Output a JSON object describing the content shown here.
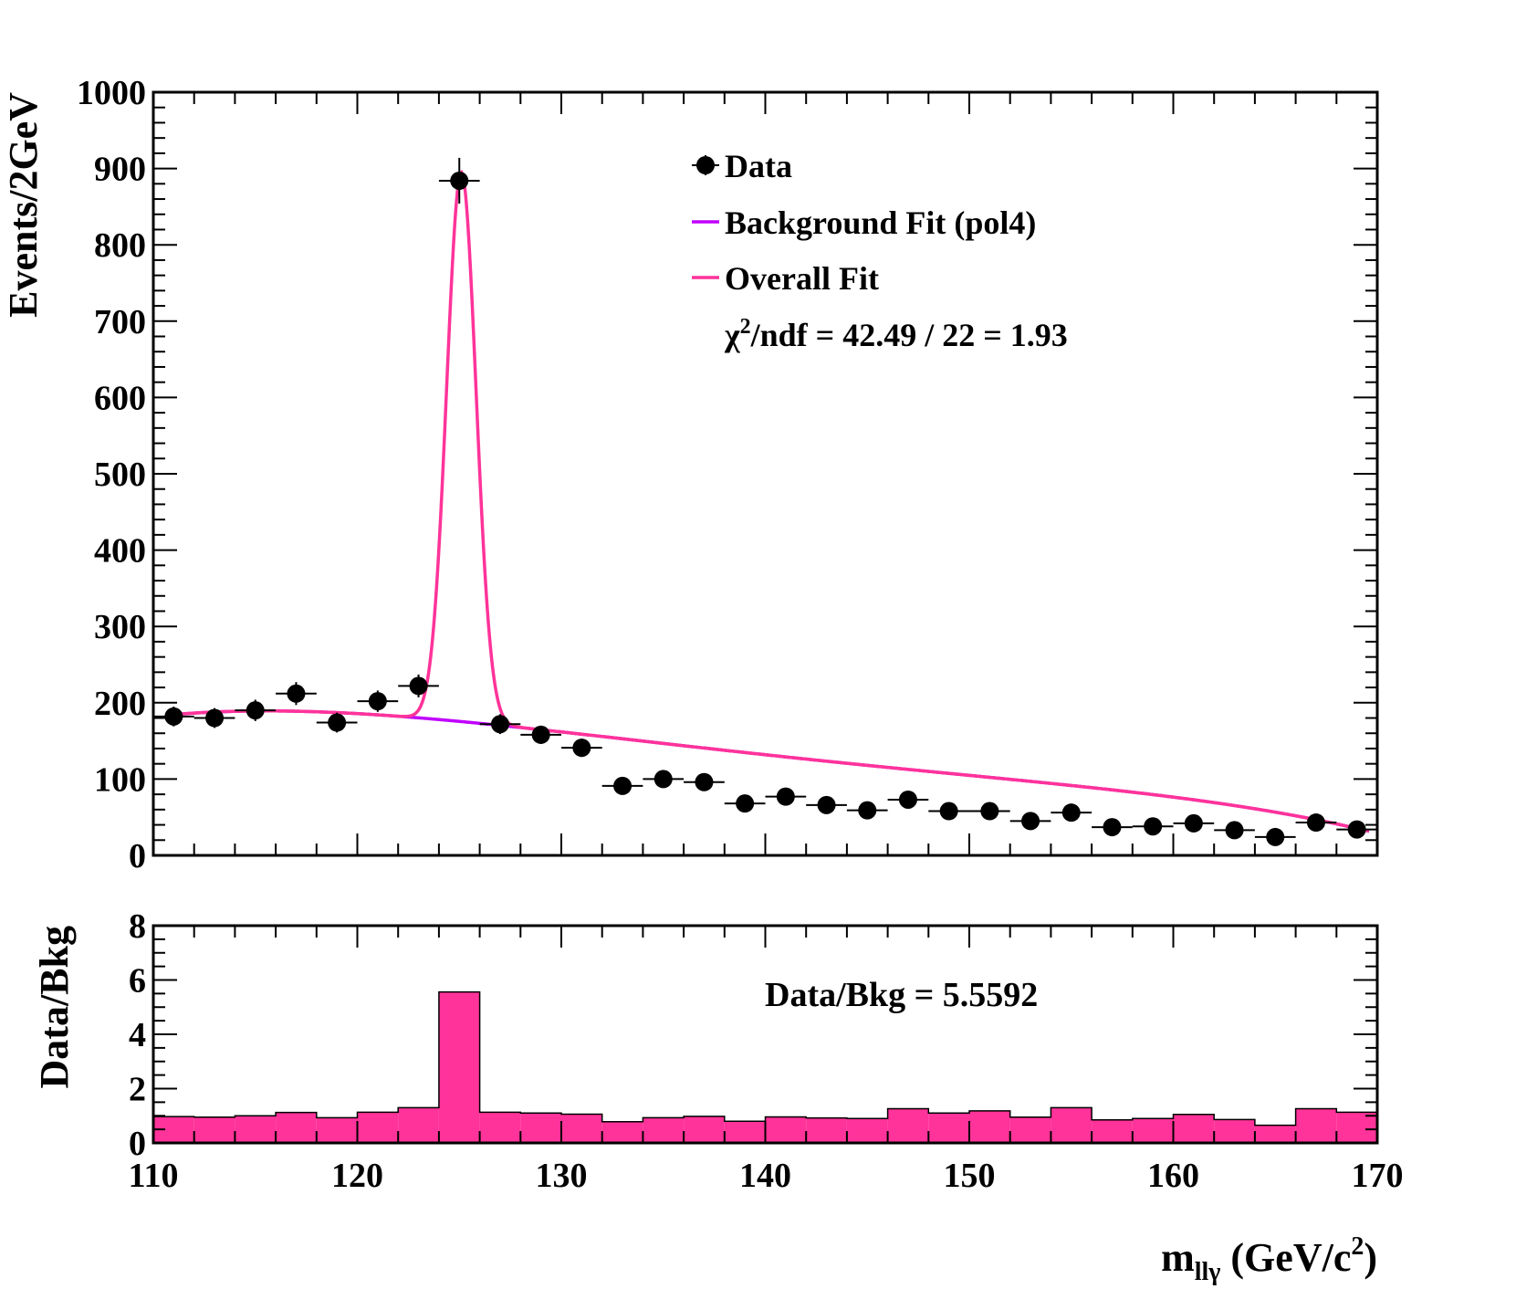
{
  "chart_data": [
    {
      "type": "scatter",
      "panel": "main",
      "ylabel": "Events/2GeV",
      "xlim": [
        110,
        170
      ],
      "ylim": [
        0,
        1000
      ],
      "y_ticks": [
        "0",
        "100",
        "200",
        "300",
        "400",
        "500",
        "600",
        "700",
        "800",
        "900",
        "1000"
      ],
      "legend": {
        "data": "Data",
        "background": "Background Fit (pol4)",
        "overall": "Overall Fit",
        "chi2_symbol": "χ",
        "chi2_sup": "2",
        "chi2_rest": "/ndf = 42.49 / 22 = 1.93"
      },
      "series": [
        {
          "name": "Data",
          "color": "#000000",
          "x": [
            111,
            113,
            115,
            117,
            119,
            121,
            123,
            125,
            127,
            129,
            131,
            133,
            135,
            137,
            139,
            141,
            143,
            145,
            147,
            149,
            151,
            153,
            155,
            157,
            159,
            161,
            163,
            165,
            167,
            169
          ],
          "y": [
            182,
            180,
            190,
            212,
            174,
            202,
            222,
            884,
            172,
            158,
            141,
            91,
            100,
            96,
            68,
            77,
            66,
            59,
            73,
            58,
            58,
            45,
            56,
            37,
            38,
            42,
            33,
            24,
            43,
            34
          ],
          "yerr": [
            13,
            13,
            14,
            15,
            13,
            14,
            15,
            30,
            13,
            12,
            12,
            10,
            10,
            10,
            8,
            9,
            8,
            8,
            8,
            8,
            8,
            7,
            7,
            6,
            6,
            6,
            6,
            5,
            7,
            6
          ]
        },
        {
          "name": "Background Fit (pol4)",
          "color": "#c000ff",
          "peak": 0
        },
        {
          "name": "Overall Fit",
          "color": "#ff3399",
          "peak": 720,
          "mean": 125.1,
          "sigma": 0.72
        }
      ]
    },
    {
      "type": "bar",
      "panel": "ratio",
      "ylabel": "Data/Bkg",
      "xlabel_main": "m",
      "xlabel_sub": "llγ",
      "xlabel_rest": " (GeV/c",
      "xlabel_sup": "2",
      "xlabel_close": ")",
      "xlim": [
        110,
        170
      ],
      "ylim": [
        0,
        8
      ],
      "y_ticks": [
        "0",
        "2",
        "4",
        "6",
        "8"
      ],
      "x_ticks": [
        "110",
        "120",
        "130",
        "140",
        "150",
        "160",
        "170"
      ],
      "annotation": "Data/Bkg = 5.5592",
      "color": "#ff3399",
      "bin_edges": [
        110,
        112,
        114,
        116,
        118,
        120,
        122,
        124,
        126,
        128,
        130,
        132,
        134,
        136,
        138,
        140,
        142,
        144,
        146,
        148,
        150,
        152,
        154,
        156,
        158,
        160,
        162,
        164,
        166,
        168,
        170
      ],
      "values": [
        0.97,
        0.95,
        1.0,
        1.12,
        0.93,
        1.13,
        1.3,
        5.56,
        1.13,
        1.1,
        1.06,
        0.78,
        0.93,
        0.98,
        0.8,
        0.96,
        0.92,
        0.9,
        1.26,
        1.1,
        1.18,
        0.95,
        1.3,
        0.85,
        0.9,
        1.05,
        0.86,
        0.65,
        1.26,
        1.13
      ]
    }
  ]
}
